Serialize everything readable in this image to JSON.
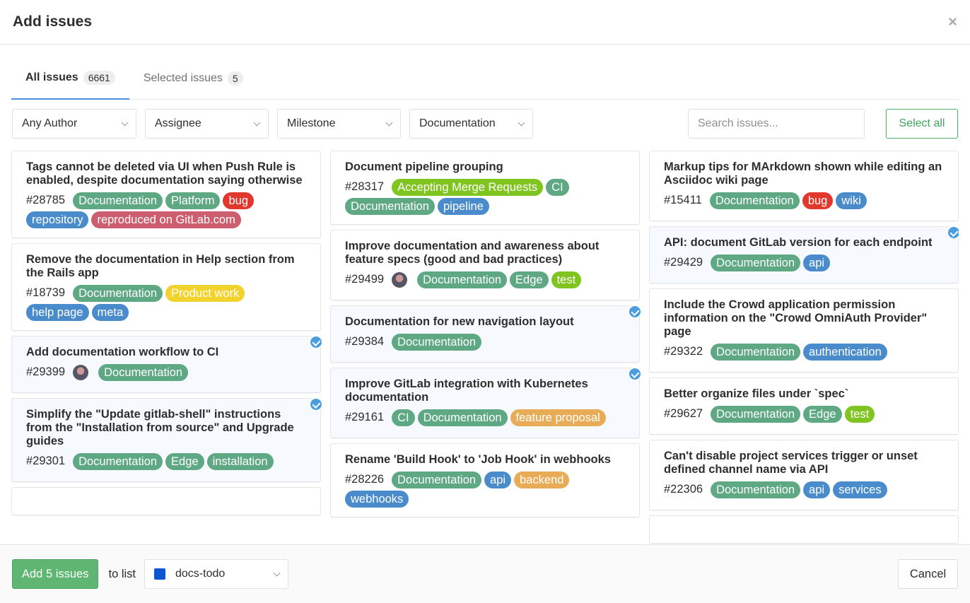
{
  "header": {
    "title": "Add issues",
    "close_icon": "close-icon"
  },
  "tabs": [
    {
      "label": "All issues",
      "count": "6661",
      "active": true
    },
    {
      "label": "Selected issues",
      "count": "5",
      "active": false
    }
  ],
  "filters": {
    "author": "Any Author",
    "assignee": "Assignee",
    "milestone": "Milestone",
    "label": "Documentation",
    "search_placeholder": "Search issues...",
    "select_all": "Select all"
  },
  "label_colors": {
    "Documentation": "#5ea884",
    "Platform": "#5ea884",
    "bug": "#e2372c",
    "repository": "#4a8ccb",
    "reproduced on GitLab.com": "#cc5e6f",
    "help page": "#4a8ccb",
    "meta": "#4a8ccb",
    "Product work": "#f2d22c",
    "Accepting Merge Requests": "#7fc41f",
    "CI": "#5ea884",
    "pipeline": "#4a8ccb",
    "Edge": "#5ea884",
    "test": "#7fc41f",
    "feature proposal": "#e8ac57",
    "api": "#4a8ccb",
    "backend": "#e8ac57",
    "webhooks": "#4a8ccb",
    "wiki": "#4a8ccb",
    "authentication": "#4a8ccb",
    "services": "#4a8ccb"
  },
  "columns": [
    [
      {
        "title": "Tags cannot be deleted via UI when Push Rule is enabled, despite documentation saying otherwise",
        "number": "#28785",
        "labels": [
          "Documentation",
          "Platform",
          "bug",
          "repository",
          "reproduced on GitLab.com"
        ],
        "selected": false,
        "avatar": false
      },
      {
        "title": "Remove the documentation in Help section from the Rails app",
        "number": "#18739",
        "labels": [
          "Documentation",
          "Product work",
          "help page",
          "meta"
        ],
        "selected": false,
        "avatar": false
      },
      {
        "title": "Add documentation workflow to CI",
        "number": "#29399",
        "labels": [
          "Documentation"
        ],
        "selected": true,
        "avatar": true
      },
      {
        "title": "Simplify the \"Update gitlab-shell\" instructions from the \"Installation from source\" and Upgrade guides",
        "number": "#29301",
        "labels": [
          "Documentation",
          "Edge",
          "installation"
        ],
        "selected": true,
        "avatar": false
      },
      {
        "title": "",
        "number": "",
        "labels": [],
        "selected": false,
        "avatar": false
      }
    ],
    [
      {
        "title": "Document pipeline grouping",
        "number": "#28317",
        "labels": [
          "Accepting Merge Requests",
          "CI",
          "Documentation",
          "pipeline"
        ],
        "selected": false,
        "avatar": false
      },
      {
        "title": "Improve documentation and awareness about feature specs (good and bad practices)",
        "number": "#29499",
        "labels": [
          "Documentation",
          "Edge",
          "test"
        ],
        "selected": false,
        "avatar": true
      },
      {
        "title": "Documentation for new navigation layout",
        "number": "#29384",
        "labels": [
          "Documentation"
        ],
        "selected": true,
        "avatar": false
      },
      {
        "title": "Improve GitLab integration with Kubernetes documentation",
        "number": "#29161",
        "labels": [
          "CI",
          "Documentation",
          "feature proposal"
        ],
        "selected": true,
        "avatar": false
      },
      {
        "title": "Rename 'Build Hook' to 'Job Hook' in webhooks",
        "number": "#28226",
        "labels": [
          "Documentation",
          "api",
          "backend",
          "webhooks"
        ],
        "selected": false,
        "avatar": false
      }
    ],
    [
      {
        "title": "Markup tips for MArkdown shown while editing an Asciidoc wiki page",
        "number": "#15411",
        "labels": [
          "Documentation",
          "bug",
          "wiki"
        ],
        "selected": false,
        "avatar": false
      },
      {
        "title": "API: document GitLab version for each endpoint",
        "number": "#29429",
        "labels": [
          "Documentation",
          "api"
        ],
        "selected": true,
        "avatar": false
      },
      {
        "title": "Include the Crowd application permission information on the \"Crowd OmniAuth Provider\" page",
        "number": "#29322",
        "labels": [
          "Documentation",
          "authentication"
        ],
        "selected": false,
        "avatar": false
      },
      {
        "title": "Better organize files under `spec`",
        "number": "#29627",
        "labels": [
          "Documentation",
          "Edge",
          "test"
        ],
        "selected": false,
        "avatar": false
      },
      {
        "title": "Can't disable project services trigger or unset defined channel name via API",
        "number": "#22306",
        "labels": [
          "Documentation",
          "api",
          "services"
        ],
        "selected": false,
        "avatar": false
      },
      {
        "title": "",
        "number": "",
        "labels": [],
        "selected": false,
        "avatar": false
      }
    ]
  ],
  "footer": {
    "add_button": "Add 5 issues",
    "to_list": "to list",
    "list_name": "docs-todo",
    "list_color": "#0b57d0",
    "cancel": "Cancel"
  }
}
